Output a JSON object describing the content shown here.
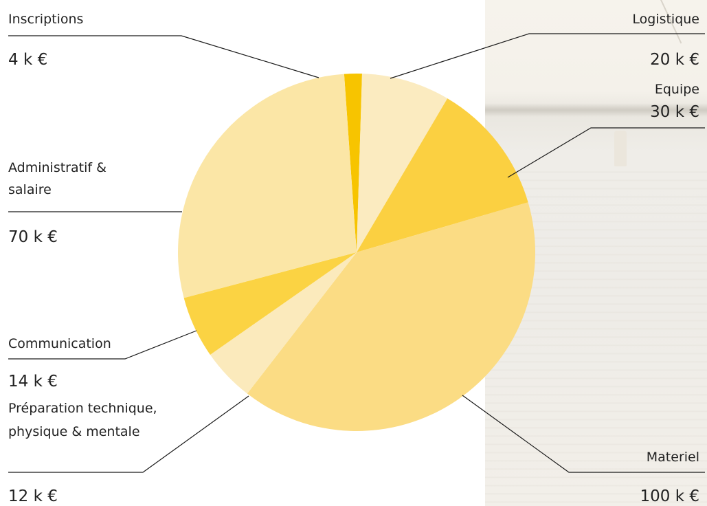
{
  "chart_data": {
    "type": "pie",
    "title": "",
    "unit": "k €",
    "legend": "none",
    "start_angle_deg": -4,
    "categories": [
      "Inscriptions",
      "Logistique",
      "Equipe",
      "Materiel",
      "Préparation technique, physique & mentale",
      "Communication",
      "Administratif & salaire"
    ],
    "values": [
      4,
      20,
      30,
      100,
      12,
      14,
      70
    ],
    "colors": [
      "#f7c400",
      "#fbebc0",
      "#fbd041",
      "#fbdc84",
      "#fbeabc",
      "#fbd343",
      "#fbe6a6"
    ],
    "labels": [
      {
        "key": "inscriptions",
        "name_lines": [
          "Inscriptions"
        ],
        "value": "4 k €",
        "side": "left"
      },
      {
        "key": "logistique",
        "name_lines": [
          "Logistique"
        ],
        "value": "20 k €",
        "side": "right"
      },
      {
        "key": "equipe",
        "name_lines": [
          "Equipe"
        ],
        "value": "30 k €",
        "side": "right"
      },
      {
        "key": "materiel",
        "name_lines": [
          "Materiel"
        ],
        "value": "100 k €",
        "side": "right"
      },
      {
        "key": "preparation",
        "name_lines": [
          "Préparation technique,",
          "physique & mentale"
        ],
        "value": "12 k €",
        "side": "left"
      },
      {
        "key": "communication",
        "name_lines": [
          "Communication"
        ],
        "value": "14 k €",
        "side": "left"
      },
      {
        "key": "administratif",
        "name_lines": [
          "Administratif &",
          "salaire"
        ],
        "value": "70 k €",
        "side": "left"
      }
    ]
  }
}
